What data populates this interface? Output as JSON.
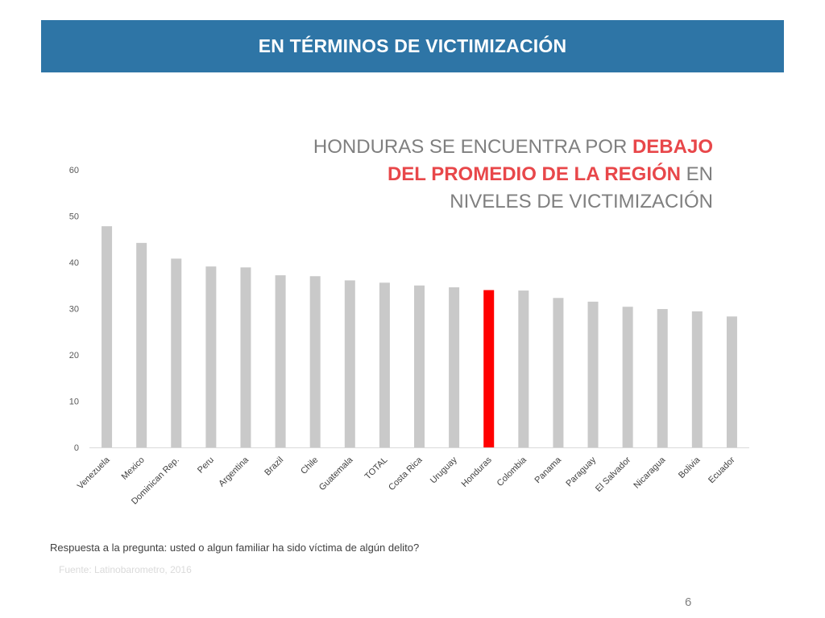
{
  "header": {
    "title": "EN TÉRMINOS DE VICTIMIZACIÓN"
  },
  "headline": {
    "line1_normal": "HONDURAS SE ENCUENTRA POR ",
    "line1_highlight": "DEBAJO",
    "line2_highlight": "DEL PROMEDIO DE LA REGIÓN",
    "line2_normal": " EN",
    "line3_normal": "NIVELES DE VICTIMIZACIÓN"
  },
  "footer": {
    "question": "Respuesta a la pregunta: usted o algun familiar ha sido víctima de algún delito?",
    "source": "Fuente: Latinobarometro, 2016",
    "page_number": "6"
  },
  "colors": {
    "title_bar": "#2e75a6",
    "bar_default": "#c9c9c9",
    "bar_highlight": "#ff0000",
    "headline_highlight": "#e8474a",
    "headline_text": "#7f7f7f"
  },
  "chart_data": {
    "type": "bar",
    "categories": [
      "Venezuela",
      "Mexico",
      "Dominican Rep.",
      "Peru",
      "Argentina",
      "Brazil",
      "Chile",
      "Guatemala",
      "TOTAL",
      "Costa Rica",
      "Uruguay",
      "Honduras",
      "Colombia",
      "Panama",
      "Paraguay",
      "El Salvador",
      "Nicaragua",
      "Bolivia",
      "Ecuador"
    ],
    "values": [
      47.8,
      44.2,
      40.8,
      39.1,
      38.9,
      37.2,
      37.0,
      36.1,
      35.6,
      35.0,
      34.6,
      34.0,
      33.9,
      32.3,
      31.5,
      30.4,
      29.9,
      29.4,
      28.3
    ],
    "highlight": "Honduras",
    "ylim": [
      0,
      60
    ],
    "yticks": [
      0,
      10,
      20,
      30,
      40,
      50,
      60
    ],
    "grid": false,
    "title": "",
    "xlabel": "",
    "ylabel": ""
  }
}
